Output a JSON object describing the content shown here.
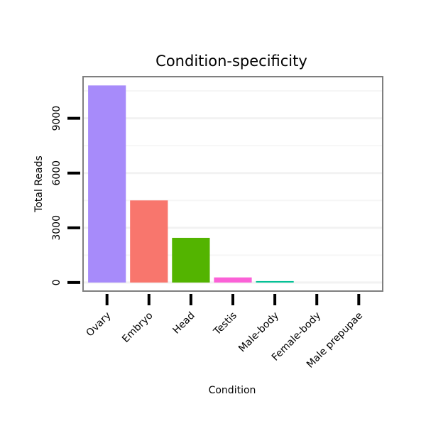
{
  "chart_data": {
    "type": "bar",
    "title": "Condition-specificity",
    "xlabel": "Condition",
    "ylabel": "Total Reads",
    "categories": [
      "Ovary",
      "Embryo",
      "Head",
      "Testis",
      "Male-body",
      "Female-body",
      "Male prepupae"
    ],
    "values": [
      10800,
      4500,
      2450,
      280,
      70,
      0,
      0
    ],
    "colors": [
      "#a78bfa",
      "#f8766d",
      "#53b400",
      "#fb61d7",
      "#00c094",
      "#00b6eb",
      "#a58aff"
    ],
    "ylim": [
      -470,
      11280
    ],
    "yticks": [
      0,
      3000,
      6000,
      9000
    ],
    "ytick_labels": [
      "0",
      "3000",
      "6000",
      "9000"
    ],
    "grid": true,
    "legend": "none"
  }
}
